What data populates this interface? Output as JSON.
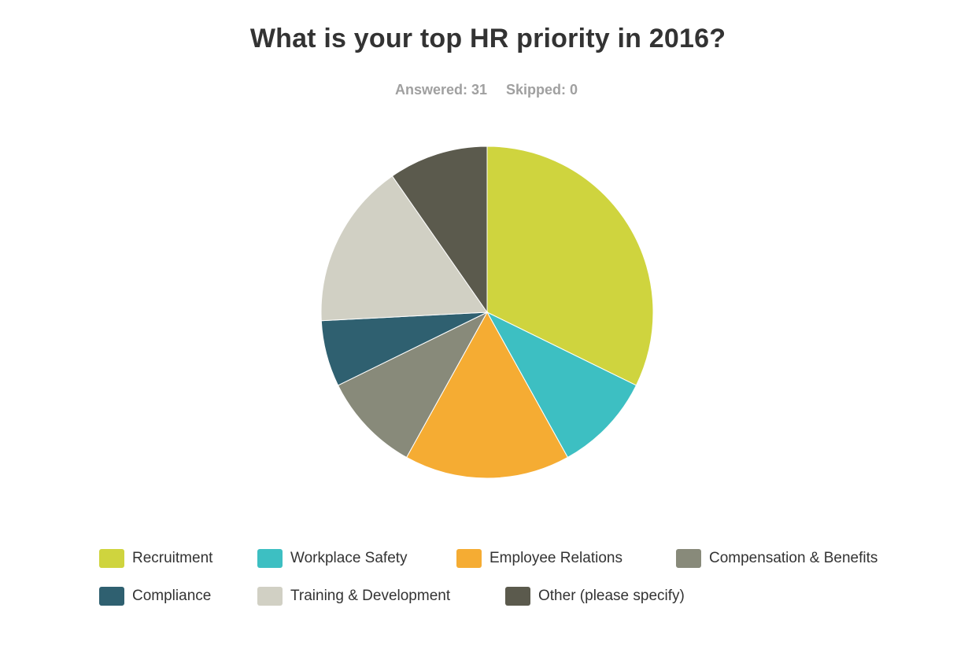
{
  "header": {
    "title": "What is your top HR priority in 2016?",
    "answered_label": "Answered: 31",
    "skipped_label": "Skipped: 0"
  },
  "chart_data": {
    "type": "pie",
    "title": "What is your top HR priority in 2016?",
    "start_angle_deg": 0,
    "direction": "clockwise",
    "legend_position": "bottom",
    "categories": [
      "Recruitment",
      "Workplace Safety",
      "Employee Relations",
      "Compensation & Benefits",
      "Compliance",
      "Training & Development",
      "Other (please specify)"
    ],
    "values": [
      10,
      3,
      5,
      3,
      2,
      5,
      3
    ],
    "colors": [
      "#cfd43e",
      "#3dbfc2",
      "#f5ac33",
      "#888a7a",
      "#2f6070",
      "#d1d0c4",
      "#5b5a4d"
    ]
  }
}
